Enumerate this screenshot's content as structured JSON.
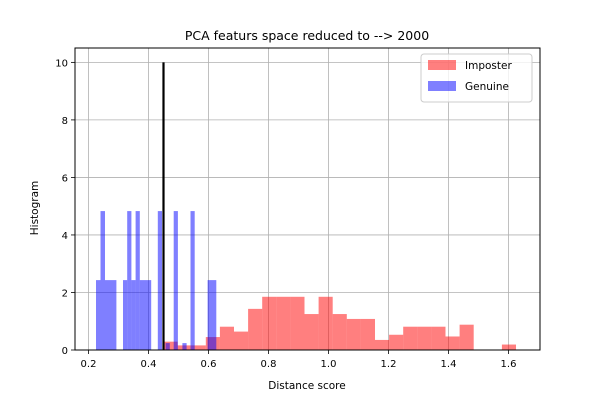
{
  "chart_data": {
    "type": "bar",
    "title": "PCA featurs space reduced to --> 2000",
    "xlabel": "Distance score",
    "ylabel": "Histogram",
    "xlim": [
      0.155,
      1.705
    ],
    "ylim": [
      0,
      10.5
    ],
    "xticks": [
      0.2,
      0.4,
      0.6,
      0.8,
      1.0,
      1.2,
      1.4,
      1.6
    ],
    "xtick_labels": [
      "0.2",
      "0.4",
      "0.6",
      "0.8",
      "1.0",
      "1.2",
      "1.4",
      "1.6"
    ],
    "yticks": [
      0,
      2,
      4,
      6,
      8,
      10
    ],
    "ytick_labels": [
      "0",
      "2",
      "4",
      "6",
      "8",
      "10"
    ],
    "grid": true,
    "legend_position": "top-right",
    "threshold_line": {
      "x": 0.45,
      "y_top": 10,
      "color": "#000000"
    },
    "series": [
      {
        "name": "Imposter",
        "color": "#ff0000",
        "alpha": 0.5,
        "bins": [
          {
            "x0": 0.45,
            "x1": 0.497,
            "value": 0.29
          },
          {
            "x0": 0.497,
            "x1": 0.544,
            "value": 0.16
          },
          {
            "x0": 0.544,
            "x1": 0.591,
            "value": 0.16
          },
          {
            "x0": 0.591,
            "x1": 0.638,
            "value": 0.45
          },
          {
            "x0": 0.638,
            "x1": 0.685,
            "value": 0.81
          },
          {
            "x0": 0.685,
            "x1": 0.732,
            "value": 0.64
          },
          {
            "x0": 0.732,
            "x1": 0.779,
            "value": 1.43
          },
          {
            "x0": 0.779,
            "x1": 0.826,
            "value": 1.85
          },
          {
            "x0": 0.826,
            "x1": 0.873,
            "value": 1.85
          },
          {
            "x0": 0.873,
            "x1": 0.92,
            "value": 1.85
          },
          {
            "x0": 0.92,
            "x1": 0.967,
            "value": 1.25
          },
          {
            "x0": 0.967,
            "x1": 1.014,
            "value": 1.85
          },
          {
            "x0": 1.014,
            "x1": 1.061,
            "value": 1.25
          },
          {
            "x0": 1.061,
            "x1": 1.108,
            "value": 1.08
          },
          {
            "x0": 1.108,
            "x1": 1.155,
            "value": 1.08
          },
          {
            "x0": 1.155,
            "x1": 1.202,
            "value": 0.35
          },
          {
            "x0": 1.202,
            "x1": 1.249,
            "value": 0.53
          },
          {
            "x0": 1.249,
            "x1": 1.296,
            "value": 0.81
          },
          {
            "x0": 1.296,
            "x1": 1.343,
            "value": 0.81
          },
          {
            "x0": 1.343,
            "x1": 1.39,
            "value": 0.81
          },
          {
            "x0": 1.39,
            "x1": 1.437,
            "value": 0.47
          },
          {
            "x0": 1.437,
            "x1": 1.484,
            "value": 0.88
          },
          {
            "x0": 1.578,
            "x1": 1.625,
            "value": 0.19
          }
        ]
      },
      {
        "name": "Genuine",
        "color": "#0000ff",
        "alpha": 0.5,
        "bins": [
          {
            "x0": 0.225,
            "x1": 0.24,
            "value": 2.43
          },
          {
            "x0": 0.24,
            "x1": 0.255,
            "value": 4.83
          },
          {
            "x0": 0.255,
            "x1": 0.293,
            "value": 2.43
          },
          {
            "x0": 0.315,
            "x1": 0.329,
            "value": 2.43
          },
          {
            "x0": 0.329,
            "x1": 0.343,
            "value": 4.83
          },
          {
            "x0": 0.343,
            "x1": 0.357,
            "value": 2.43
          },
          {
            "x0": 0.357,
            "x1": 0.371,
            "value": 4.83
          },
          {
            "x0": 0.371,
            "x1": 0.409,
            "value": 2.43
          },
          {
            "x0": 0.431,
            "x1": 0.445,
            "value": 4.83
          },
          {
            "x0": 0.457,
            "x1": 0.471,
            "value": 0.24
          },
          {
            "x0": 0.484,
            "x1": 0.498,
            "value": 4.83
          },
          {
            "x0": 0.513,
            "x1": 0.527,
            "value": 0.24
          },
          {
            "x0": 0.54,
            "x1": 0.554,
            "value": 4.83
          },
          {
            "x0": 0.597,
            "x1": 0.626,
            "value": 2.43
          }
        ]
      }
    ]
  }
}
